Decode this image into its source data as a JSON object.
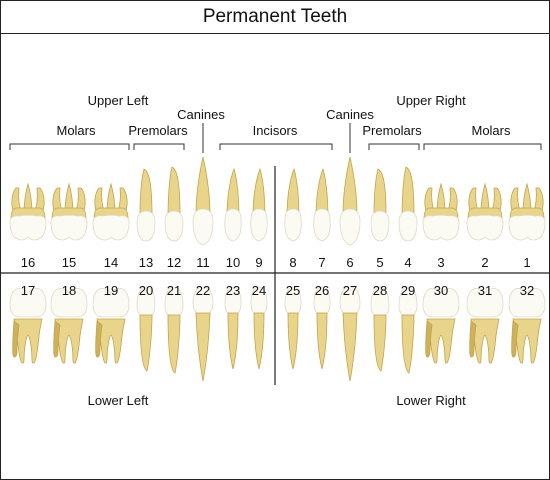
{
  "title": "Permanent Teeth",
  "colors": {
    "root": "#e8d48a",
    "root_stroke": "#c2a54e",
    "root_shade": "#cfb05c",
    "crown": "#fcfbf3",
    "crown_stroke": "#dedac6",
    "line": "#222222",
    "bracket": "#333333"
  },
  "labels": {
    "upper_left": "Upper Left",
    "upper_right": "Upper Right",
    "lower_left": "Lower Left",
    "lower_right": "Lower Right",
    "canines_left": "Canines",
    "canines_right": "Canines",
    "molars_left": "Molars",
    "premolars_left": "Premolars",
    "incisors": "Incisors",
    "premolars_right": "Premolars",
    "molars_right": "Molars"
  },
  "upper_teeth": [
    {
      "number": "16",
      "type": "molar"
    },
    {
      "number": "15",
      "type": "molar"
    },
    {
      "number": "14",
      "type": "molar"
    },
    {
      "number": "13",
      "type": "premolar"
    },
    {
      "number": "12",
      "type": "premolar"
    },
    {
      "number": "11",
      "type": "canine"
    },
    {
      "number": "10",
      "type": "incisor"
    },
    {
      "number": "9",
      "type": "incisor"
    },
    {
      "number": "8",
      "type": "incisor"
    },
    {
      "number": "7",
      "type": "incisor"
    },
    {
      "number": "6",
      "type": "canine"
    },
    {
      "number": "5",
      "type": "premolar"
    },
    {
      "number": "4",
      "type": "premolar"
    },
    {
      "number": "3",
      "type": "molar"
    },
    {
      "number": "2",
      "type": "molar"
    },
    {
      "number": "1",
      "type": "molar"
    }
  ],
  "lower_teeth": [
    {
      "number": "17",
      "type": "molar"
    },
    {
      "number": "18",
      "type": "molar"
    },
    {
      "number": "19",
      "type": "molar"
    },
    {
      "number": "20",
      "type": "premolar"
    },
    {
      "number": "21",
      "type": "premolar"
    },
    {
      "number": "22",
      "type": "canine"
    },
    {
      "number": "23",
      "type": "incisor"
    },
    {
      "number": "24",
      "type": "incisor"
    },
    {
      "number": "25",
      "type": "incisor"
    },
    {
      "number": "26",
      "type": "incisor"
    },
    {
      "number": "27",
      "type": "canine"
    },
    {
      "number": "28",
      "type": "premolar"
    },
    {
      "number": "29",
      "type": "premolar"
    },
    {
      "number": "30",
      "type": "molar"
    },
    {
      "number": "31",
      "type": "molar"
    },
    {
      "number": "32",
      "type": "molar"
    }
  ]
}
